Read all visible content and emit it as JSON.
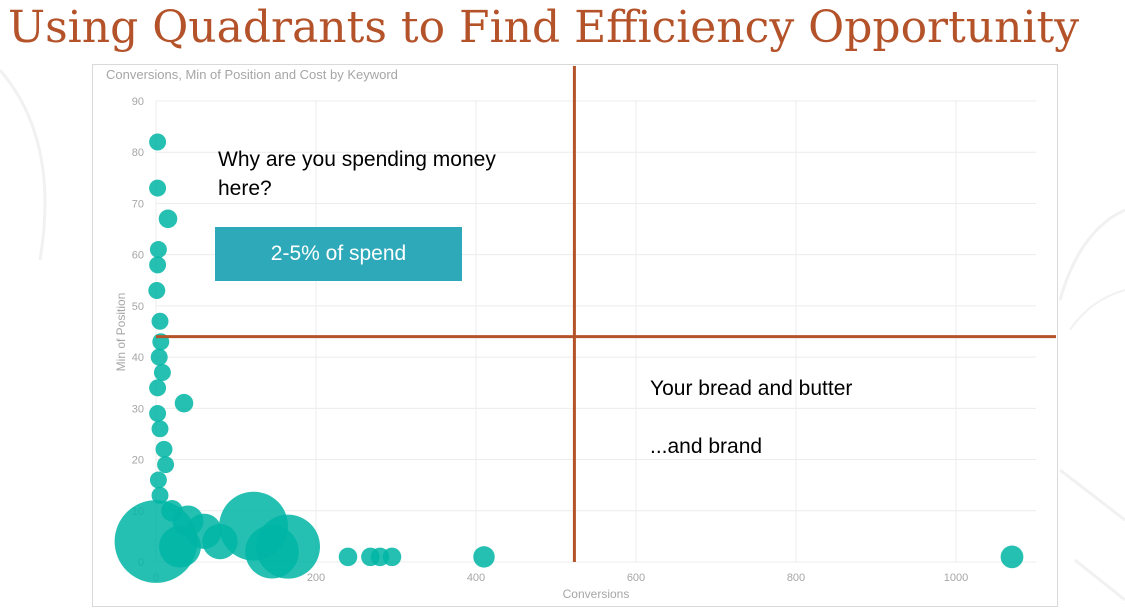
{
  "slide": {
    "title": "Using Quadrants to Find Efficiency Opportunity"
  },
  "annotations": {
    "why_spending": "Why are you spending money here?",
    "spend_badge": "2-5% of spend",
    "bread_butter": "Your bread and butter",
    "and_brand": "...and brand"
  },
  "colors": {
    "title": "#b4532a",
    "quadrant_lines": "#b4532a",
    "bubble": "#00b5a5",
    "badge": "#2ea9b9",
    "grid": "#ececec",
    "axis_text": "#a6a6a6"
  },
  "chart_data": {
    "type": "scatter",
    "title": "Conversions, Min of Position and Cost by Keyword",
    "xlabel": "Conversions",
    "ylabel": "Min of Position",
    "xlim": [
      0,
      1100
    ],
    "ylim": [
      0,
      90
    ],
    "xticks": [
      0,
      200,
      400,
      600,
      800,
      1000
    ],
    "yticks": [
      0,
      10,
      20,
      30,
      40,
      50,
      60,
      70,
      80,
      90
    ],
    "grid": true,
    "size_encodes": "Cost",
    "quadrant_divider": {
      "x": 523,
      "y": 44
    },
    "points": [
      {
        "x": 0,
        "y": 4,
        "cost": 6
      },
      {
        "x": 2,
        "y": 82,
        "cost": 0.5
      },
      {
        "x": 2,
        "y": 73,
        "cost": 0.5
      },
      {
        "x": 15,
        "y": 67,
        "cost": 0.6
      },
      {
        "x": 3,
        "y": 61,
        "cost": 0.5
      },
      {
        "x": 2,
        "y": 58,
        "cost": 0.5
      },
      {
        "x": 1,
        "y": 53,
        "cost": 0.5
      },
      {
        "x": 5,
        "y": 47,
        "cost": 0.5
      },
      {
        "x": 6,
        "y": 43,
        "cost": 0.5
      },
      {
        "x": 4,
        "y": 40,
        "cost": 0.5
      },
      {
        "x": 8,
        "y": 37,
        "cost": 0.5
      },
      {
        "x": 2,
        "y": 34,
        "cost": 0.5
      },
      {
        "x": 35,
        "y": 31,
        "cost": 0.6
      },
      {
        "x": 2,
        "y": 29,
        "cost": 0.5
      },
      {
        "x": 5,
        "y": 26,
        "cost": 0.5
      },
      {
        "x": 10,
        "y": 22,
        "cost": 0.5
      },
      {
        "x": 12,
        "y": 19,
        "cost": 0.5
      },
      {
        "x": 3,
        "y": 16,
        "cost": 0.5
      },
      {
        "x": 5,
        "y": 13,
        "cost": 0.5
      },
      {
        "x": 20,
        "y": 10,
        "cost": 0.8
      },
      {
        "x": 40,
        "y": 8,
        "cost": 1.2
      },
      {
        "x": 60,
        "y": 6,
        "cost": 1.5
      },
      {
        "x": 80,
        "y": 4,
        "cost": 1.5
      },
      {
        "x": 30,
        "y": 3,
        "cost": 2
      },
      {
        "x": 122,
        "y": 7,
        "cost": 4.5
      },
      {
        "x": 165,
        "y": 3,
        "cost": 4
      },
      {
        "x": 145,
        "y": 2,
        "cost": 3
      },
      {
        "x": 240,
        "y": 1,
        "cost": 0.6
      },
      {
        "x": 268,
        "y": 1,
        "cost": 0.6
      },
      {
        "x": 280,
        "y": 1,
        "cost": 0.6
      },
      {
        "x": 295,
        "y": 1,
        "cost": 0.6
      },
      {
        "x": 410,
        "y": 1,
        "cost": 0.8
      },
      {
        "x": 1070,
        "y": 1,
        "cost": 0.9
      }
    ]
  }
}
